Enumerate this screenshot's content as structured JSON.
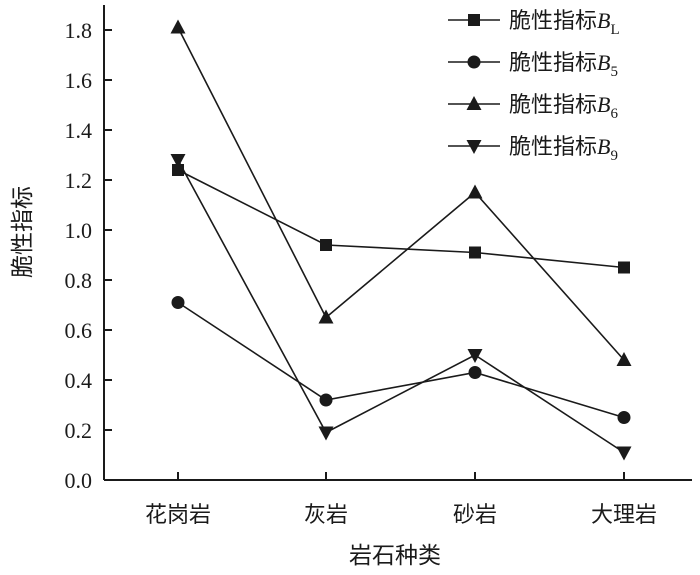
{
  "chart_data": {
    "type": "line",
    "xlabel": "岩石种类",
    "ylabel": "脆性指标",
    "categories": [
      "花岗岩",
      "灰岩",
      "砂岩",
      "大理岩"
    ],
    "ylim": [
      0.0,
      1.9
    ],
    "yticks": [
      "0.0",
      "0.2",
      "0.4",
      "0.6",
      "0.8",
      "1.0",
      "1.2",
      "1.4",
      "1.6",
      "1.8"
    ],
    "grid": false,
    "legend_position": "top-right",
    "series": [
      {
        "label": "脆性指标",
        "var": "B",
        "sub": "L",
        "marker": "square",
        "values": [
          1.24,
          0.94,
          0.91,
          0.85
        ]
      },
      {
        "label": "脆性指标",
        "var": "B",
        "sub": "5",
        "marker": "circle",
        "values": [
          0.71,
          0.32,
          0.43,
          0.25
        ]
      },
      {
        "label": "脆性指标",
        "var": "B",
        "sub": "6",
        "marker": "triangle-up",
        "values": [
          1.81,
          0.65,
          1.15,
          0.48
        ]
      },
      {
        "label": "脆性指标",
        "var": "B",
        "sub": "9",
        "marker": "triangle-down",
        "values": [
          1.28,
          0.19,
          0.5,
          0.11
        ]
      }
    ],
    "color": "#1a1a1a"
  }
}
